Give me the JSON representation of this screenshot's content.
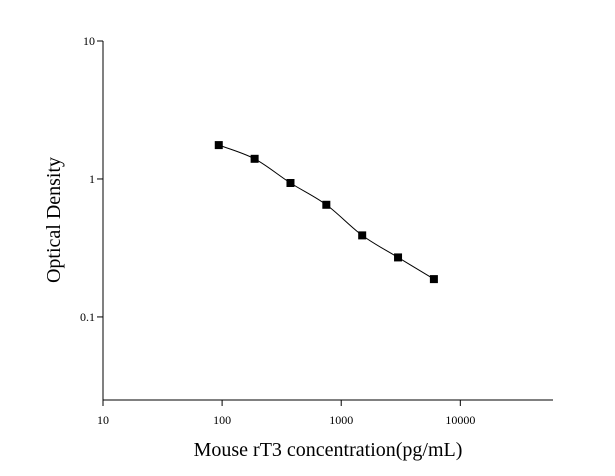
{
  "chart_data": {
    "type": "scatter",
    "xlabel": "Mouse rT3 concentration(pg/mL)",
    "ylabel": "Optical Density",
    "x_log": true,
    "y_log": true,
    "xlim": [
      10,
      60000
    ],
    "ylim": [
      0.025,
      10
    ],
    "xticks": [
      10,
      100,
      1000,
      10000
    ],
    "yticks": [
      0.1,
      1,
      10
    ],
    "fit_line": true,
    "series": [
      {
        "color": "#000000",
        "x": [
          93.75,
          187.5,
          375,
          750,
          1500,
          3000,
          6000
        ],
        "values": [
          1.76,
          1.4,
          0.935,
          0.65,
          0.39,
          0.27,
          0.188
        ]
      }
    ]
  }
}
